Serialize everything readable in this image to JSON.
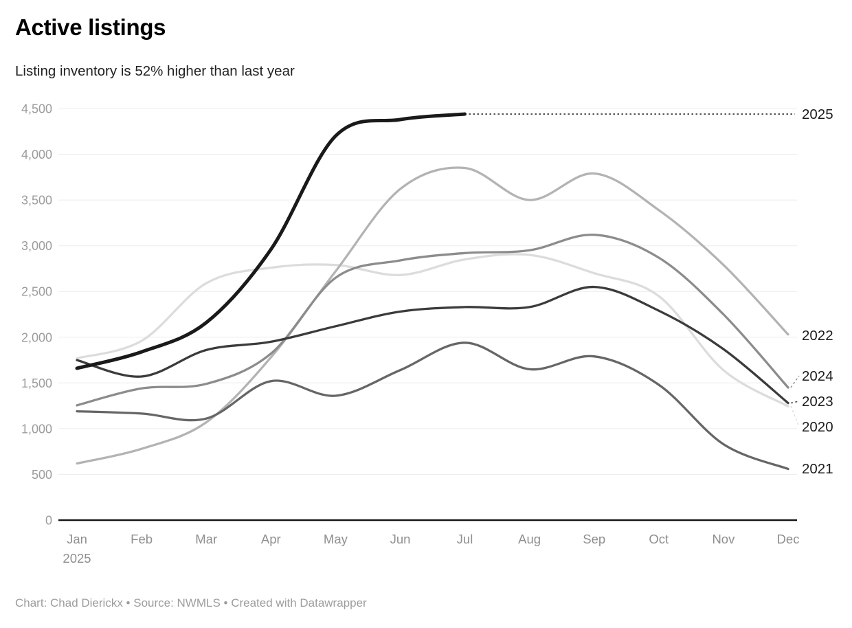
{
  "header": {
    "title": "Active listings",
    "subtitle": "Listing inventory is 52% higher than last year"
  },
  "footer": {
    "byline": "Chart: Chad Dierickx • Source: NWMLS • Created with Datawrapper"
  },
  "chart_data": {
    "type": "line",
    "title": "Active listings",
    "subtitle": "Listing inventory is 52% higher than last year",
    "x_categories": [
      "Jan",
      "Feb",
      "Mar",
      "Apr",
      "May",
      "Jun",
      "Jul",
      "Aug",
      "Sep",
      "Oct",
      "Nov",
      "Dec"
    ],
    "x_axis_year_label": "2025",
    "ylim": [
      0,
      4500
    ],
    "y_tick_step": 500,
    "y_tick_labels": [
      "0",
      "500",
      "1,000",
      "1,500",
      "2,000",
      "2,500",
      "3,000",
      "3,500",
      "4,000",
      "4,500"
    ],
    "grid": "horizontal",
    "legend": "direct-labels-right",
    "series": [
      {
        "name": "2020",
        "color": "#dcdcdc",
        "values": [
          1770,
          1960,
          2590,
          2760,
          2790,
          2680,
          2850,
          2900,
          2700,
          2450,
          1640,
          1245
        ]
      },
      {
        "name": "2021",
        "color": "#666666",
        "values": [
          1190,
          1165,
          1110,
          1520,
          1360,
          1640,
          1940,
          1650,
          1790,
          1480,
          830,
          560
        ]
      },
      {
        "name": "2022",
        "color": "#b3b3b3",
        "values": [
          620,
          780,
          1070,
          1780,
          2720,
          3620,
          3850,
          3500,
          3790,
          3390,
          2790,
          2030
        ]
      },
      {
        "name": "2023",
        "color": "#3b3b3b",
        "values": [
          1750,
          1570,
          1860,
          1950,
          2120,
          2280,
          2330,
          2330,
          2550,
          2290,
          1870,
          1280
        ]
      },
      {
        "name": "2024",
        "color": "#8c8c8c",
        "values": [
          1255,
          1440,
          1490,
          1820,
          2650,
          2840,
          2920,
          2950,
          3120,
          2870,
          2250,
          1450
        ]
      },
      {
        "name": "2025",
        "color": "#1a1a1a",
        "emphasis": true,
        "values": [
          1660,
          1840,
          2160,
          2960,
          4200,
          4380,
          4440,
          null,
          null,
          null,
          null,
          null
        ]
      }
    ]
  }
}
